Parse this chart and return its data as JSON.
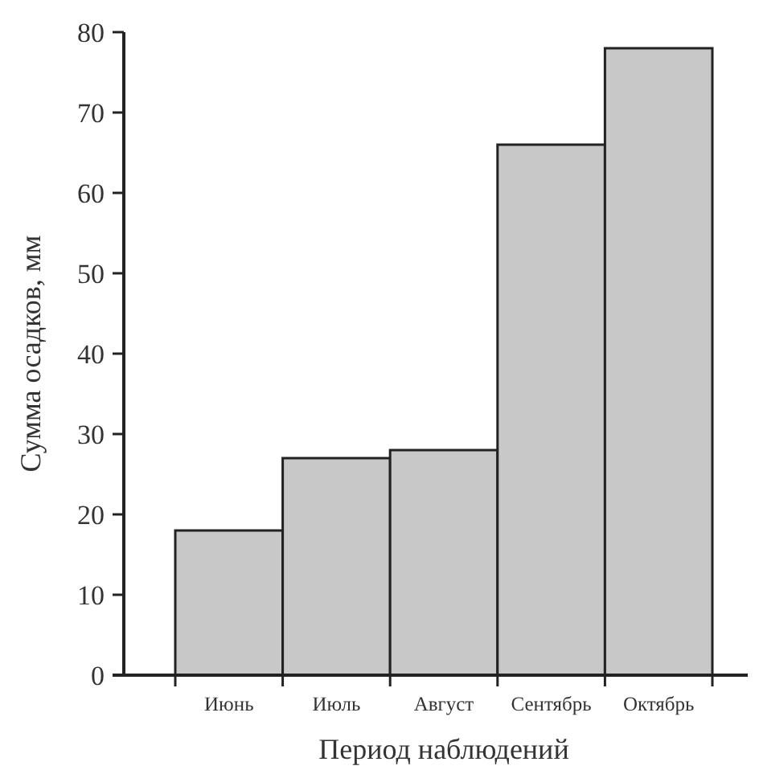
{
  "chart_data": {
    "type": "bar",
    "xlabel": "Период наблюдений",
    "ylabel": "Сумма осадков, мм",
    "categories": [
      "Июнь",
      "Июль",
      "Август",
      "Сентябрь",
      "Октябрь"
    ],
    "values": [
      18,
      27,
      28,
      66,
      78
    ],
    "color": "#c8c8c8",
    "ylim": [
      0,
      80
    ],
    "yticks": [
      0,
      10,
      20,
      30,
      40,
      50,
      60,
      70,
      80
    ],
    "grid": false
  }
}
